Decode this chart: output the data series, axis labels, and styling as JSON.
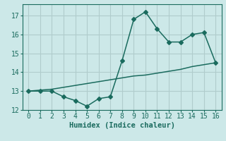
{
  "line1_x": [
    0,
    1,
    2,
    3,
    4,
    5,
    6,
    7,
    8,
    9,
    10,
    11,
    12,
    13,
    14,
    15,
    16
  ],
  "line1_y": [
    13.0,
    13.0,
    13.0,
    12.7,
    12.5,
    12.2,
    12.6,
    12.7,
    14.6,
    16.8,
    17.2,
    16.3,
    15.6,
    15.6,
    16.0,
    16.1,
    14.5
  ],
  "line2_x": [
    0,
    1,
    2,
    3,
    4,
    5,
    6,
    7,
    8,
    9,
    10,
    11,
    12,
    13,
    14,
    15,
    16
  ],
  "line2_y": [
    13.0,
    13.05,
    13.1,
    13.2,
    13.3,
    13.4,
    13.5,
    13.6,
    13.7,
    13.8,
    13.85,
    13.95,
    14.05,
    14.15,
    14.3,
    14.4,
    14.5
  ],
  "line_color": "#1a6b5e",
  "bg_color": "#cce8e8",
  "grid_color": "#b0cccc",
  "xlabel": "Humidex (Indice chaleur)",
  "xlim": [
    -0.5,
    16.5
  ],
  "ylim": [
    12.0,
    17.6
  ],
  "yticks": [
    12,
    13,
    14,
    15,
    16,
    17
  ],
  "xticks": [
    0,
    1,
    2,
    3,
    4,
    5,
    6,
    7,
    8,
    9,
    10,
    11,
    12,
    13,
    14,
    15,
    16
  ],
  "xlabel_fontsize": 7.5,
  "tick_fontsize": 7,
  "marker_size": 3.0,
  "linewidth": 1.1
}
